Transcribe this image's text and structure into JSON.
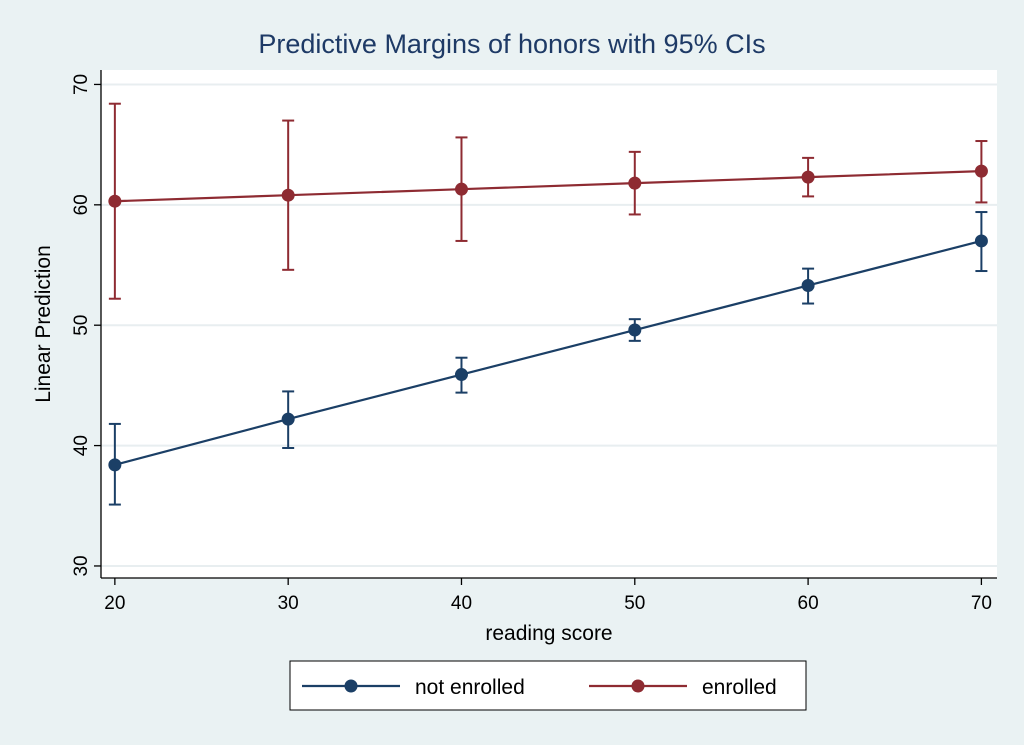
{
  "chart_data": {
    "type": "line",
    "title": "Predictive Margins of honors with 95% CIs",
    "xlabel": "reading score",
    "ylabel": "Linear Prediction",
    "x": [
      20,
      30,
      40,
      50,
      60,
      70
    ],
    "xlim": [
      19.2,
      70.9
    ],
    "ylim": [
      29,
      71.2
    ],
    "xticks": [
      20,
      30,
      40,
      50,
      60,
      70
    ],
    "yticks": [
      30,
      40,
      50,
      60,
      70
    ],
    "grid": true,
    "legend_position": "bottom",
    "series": [
      {
        "name": "not enrolled",
        "color": "#1b3f66",
        "values": [
          38.4,
          42.2,
          45.9,
          49.6,
          53.3,
          57.0
        ],
        "ci_low": [
          35.1,
          39.8,
          44.4,
          48.7,
          51.8,
          54.5
        ],
        "ci_high": [
          41.8,
          44.5,
          47.3,
          50.5,
          54.7,
          59.4
        ]
      },
      {
        "name": "enrolled",
        "color": "#8e2b32",
        "values": [
          60.3,
          60.8,
          61.3,
          61.8,
          62.3,
          62.8
        ],
        "ci_low": [
          52.2,
          54.6,
          57.0,
          59.2,
          60.7,
          60.2
        ],
        "ci_high": [
          68.4,
          67.0,
          65.6,
          64.4,
          63.9,
          65.3
        ]
      }
    ]
  }
}
